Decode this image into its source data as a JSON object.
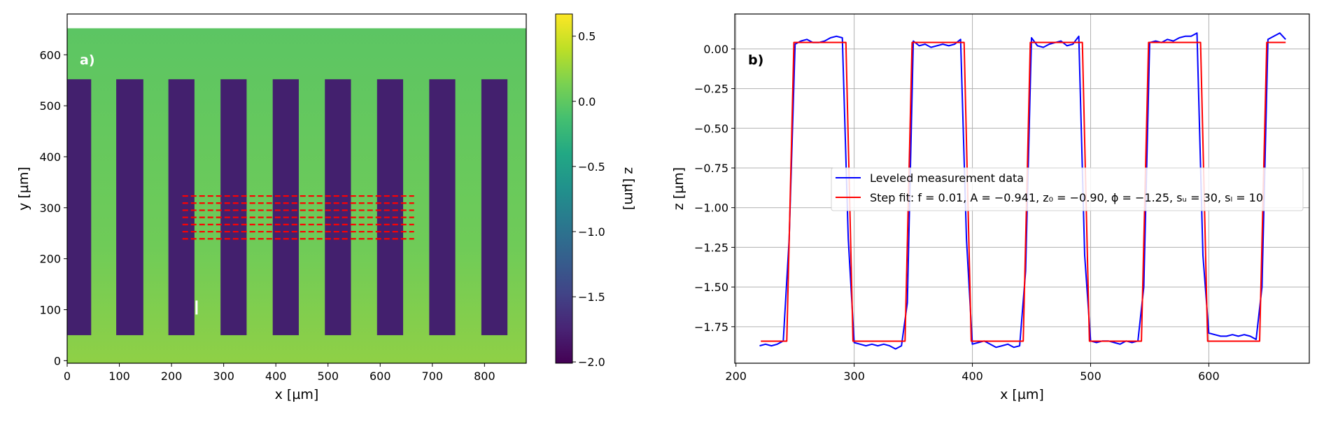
{
  "chart_data": [
    {
      "type": "heatmap",
      "panel_label": "a)",
      "xlabel": "x [µm]",
      "ylabel": "y [µm]",
      "xlim": [
        0,
        880
      ],
      "ylim": [
        -5,
        680
      ],
      "data_extent": {
        "x": [
          0,
          880
        ],
        "y": [
          -5,
          652
        ]
      },
      "xticks": [
        0,
        100,
        200,
        300,
        400,
        500,
        600,
        700,
        800
      ],
      "yticks": [
        0,
        100,
        200,
        300,
        400,
        500,
        600
      ],
      "colormap": "viridis",
      "colorbar": {
        "label": "z [µm]",
        "range": [
          -2.01,
          0.67
        ],
        "ticks": [
          0.5,
          0.0,
          -0.5,
          -1.0,
          -1.5,
          -2.0
        ]
      },
      "background_z": 0.0,
      "trenches": {
        "z": -1.9,
        "y_range": [
          50,
          552
        ],
        "x_ranges": [
          [
            0,
            46
          ],
          [
            94,
            146
          ],
          [
            194,
            244
          ],
          [
            294,
            344
          ],
          [
            394,
            444
          ],
          [
            494,
            544
          ],
          [
            594,
            644
          ],
          [
            694,
            744
          ],
          [
            794,
            844
          ]
        ]
      },
      "profile_lines": {
        "color": "#ff0000",
        "style": "dashed",
        "x_range": [
          221,
          665
        ],
        "y_values": [
          323,
          309,
          295,
          281,
          267,
          253,
          239
        ]
      },
      "grid": false
    },
    {
      "type": "line",
      "panel_label": "b)",
      "xlabel": "x [µm]",
      "ylabel": "z [µm]",
      "xlim": [
        199,
        685
      ],
      "ylim": [
        -1.98,
        0.22
      ],
      "xticks": [
        200,
        300,
        400,
        500,
        600
      ],
      "yticks": [
        0.0,
        -0.25,
        -0.5,
        -0.75,
        -1.0,
        -1.25,
        -1.5,
        -1.75
      ],
      "grid": true,
      "legend_position": "center-right",
      "series": [
        {
          "name": "Leveled measurement data",
          "color": "#0000ff",
          "x": [
            220,
            225,
            230,
            235,
            240,
            245,
            250,
            255,
            260,
            265,
            270,
            275,
            280,
            285,
            290,
            295,
            300,
            305,
            310,
            315,
            320,
            325,
            330,
            335,
            340,
            345,
            350,
            355,
            360,
            365,
            370,
            375,
            380,
            385,
            390,
            395,
            400,
            405,
            410,
            415,
            420,
            425,
            430,
            435,
            440,
            445,
            450,
            455,
            460,
            465,
            470,
            475,
            480,
            485,
            490,
            495,
            500,
            505,
            510,
            515,
            520,
            525,
            530,
            535,
            540,
            545,
            550,
            555,
            560,
            565,
            570,
            575,
            580,
            585,
            590,
            595,
            600,
            605,
            610,
            615,
            620,
            625,
            630,
            635,
            640,
            645,
            650,
            655,
            660,
            665
          ],
          "y": [
            -1.87,
            -1.86,
            -1.87,
            -1.86,
            -1.84,
            -1.2,
            0.03,
            0.05,
            0.06,
            0.04,
            0.04,
            0.05,
            0.07,
            0.08,
            0.07,
            -1.2,
            -1.85,
            -1.86,
            -1.87,
            -1.86,
            -1.87,
            -1.86,
            -1.87,
            -1.89,
            -1.87,
            -1.6,
            0.05,
            0.02,
            0.03,
            0.01,
            0.02,
            0.03,
            0.02,
            0.03,
            0.06,
            -1.2,
            -1.86,
            -1.85,
            -1.84,
            -1.86,
            -1.88,
            -1.87,
            -1.86,
            -1.88,
            -1.87,
            -1.4,
            0.07,
            0.02,
            0.01,
            0.03,
            0.04,
            0.05,
            0.02,
            0.03,
            0.08,
            -1.3,
            -1.84,
            -1.85,
            -1.84,
            -1.84,
            -1.85,
            -1.86,
            -1.84,
            -1.85,
            -1.84,
            -1.5,
            0.04,
            0.05,
            0.04,
            0.06,
            0.05,
            0.07,
            0.08,
            0.08,
            0.1,
            -1.3,
            -1.79,
            -1.8,
            -1.81,
            -1.81,
            -1.8,
            -1.81,
            -1.8,
            -1.81,
            -1.83,
            -1.5,
            0.06,
            0.08,
            0.1,
            0.06
          ]
        },
        {
          "name": "Step fit: f = 0.01, A = −0.941, z₀ = −0.90, ϕ = −1.25, sᵤ = 30, sₗ = 10",
          "color": "#ff0000",
          "x": [
            221,
            243,
            246,
            249,
            293,
            296,
            299,
            343,
            346,
            349,
            393,
            396,
            399,
            443,
            446,
            449,
            493,
            496,
            499,
            543,
            546,
            549,
            593,
            596,
            599,
            643,
            646,
            649,
            665
          ],
          "y": [
            -1.841,
            -1.841,
            -0.9,
            0.041,
            0.041,
            -0.9,
            -1.841,
            -1.841,
            -0.9,
            0.041,
            0.041,
            -0.9,
            -1.841,
            -1.841,
            -0.9,
            0.041,
            0.041,
            -0.9,
            -1.841,
            -1.841,
            -0.9,
            0.041,
            0.041,
            -0.9,
            -1.841,
            -1.841,
            -0.9,
            0.041,
            0.041
          ]
        }
      ]
    }
  ]
}
